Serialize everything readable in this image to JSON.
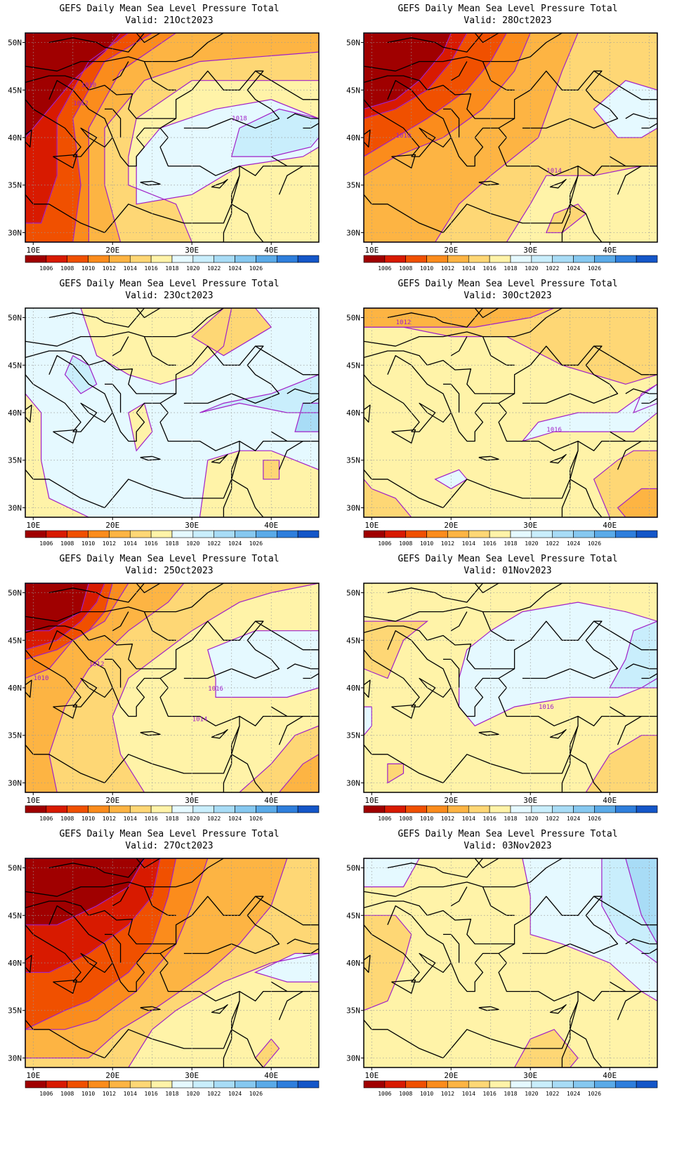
{
  "product_title": "GEFS Daily Mean Sea Level Pressure Total",
  "valid_prefix": "Valid:",
  "lat_labels": [
    "50N",
    "45N",
    "40N",
    "35N",
    "30N"
  ],
  "lon_labels": [
    "10E",
    "20E",
    "30E",
    "40E"
  ],
  "colorbar_values": [
    "1006",
    "1008",
    "1010",
    "1012",
    "1014",
    "1016",
    "1018",
    "1020",
    "1022",
    "1024",
    "1026"
  ],
  "colorbar_colors": [
    "#a00000",
    "#d81a00",
    "#f05000",
    "#fb8c1c",
    "#fdb443",
    "#fed775",
    "#fff3a8",
    "#e5f9ff",
    "#c9eefc",
    "#a8dcf6",
    "#86c8f0",
    "#5aaae8",
    "#2e7edc",
    "#1456c8"
  ],
  "contour_color": "#a020c8",
  "panels": [
    {
      "valid": "21Oct2023",
      "contour_labels": [
        "1010",
        "1012",
        "1018"
      ]
    },
    {
      "valid": "28Oct2023",
      "contour_labels": [
        "1010",
        "1014"
      ]
    },
    {
      "valid": "23Oct2023",
      "contour_labels": []
    },
    {
      "valid": "30Oct2023",
      "contour_labels": [
        "1012",
        "1016"
      ]
    },
    {
      "valid": "25Oct2023",
      "contour_labels": [
        "1010",
        "1012",
        "1016",
        "1014"
      ]
    },
    {
      "valid": "01Nov2023",
      "contour_labels": [
        "1016"
      ]
    },
    {
      "valid": "27Oct2023",
      "contour_labels": []
    },
    {
      "valid": "03Nov2023",
      "contour_labels": []
    }
  ]
}
